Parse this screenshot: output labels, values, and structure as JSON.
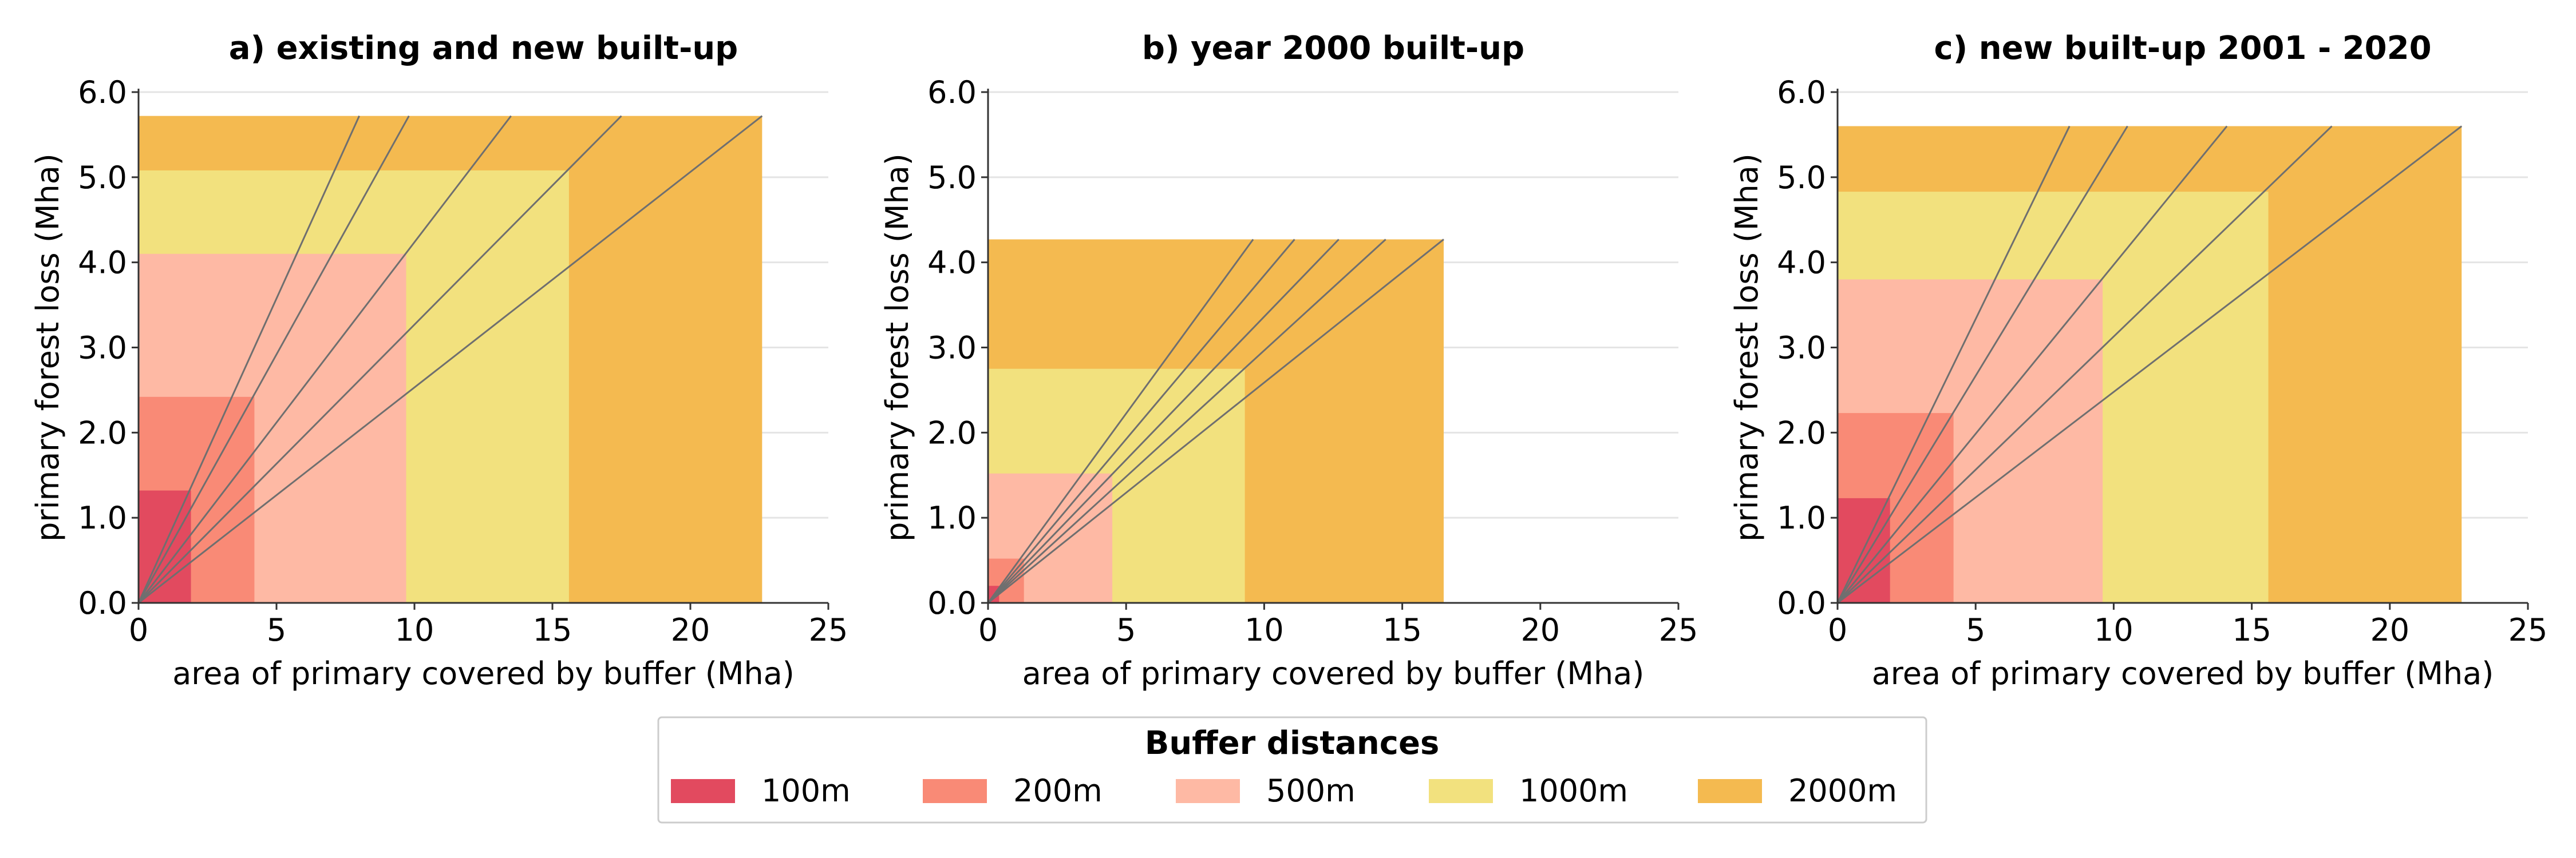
{
  "legend": {
    "title": "Buffer distances",
    "entries": [
      {
        "label": "100m",
        "color": "#e24a5f"
      },
      {
        "label": "200m",
        "color": "#f98a76"
      },
      {
        "label": "500m",
        "color": "#feb9a4"
      },
      {
        "label": "1000m",
        "color": "#f2e17e"
      },
      {
        "label": "2000m",
        "color": "#f4ba50"
      }
    ]
  },
  "chart_data": [
    {
      "type": "area",
      "title": "a) existing and new built-up",
      "xlabel": "area of primary covered by buffer (Mha)",
      "ylabel": "primary forest loss (Mha)",
      "xlim": [
        0,
        25
      ],
      "ylim": [
        0,
        6.0
      ],
      "xticks": [
        0,
        5,
        10,
        15,
        20,
        25
      ],
      "yticks": [
        0.0,
        1.0,
        2.0,
        3.0,
        4.0,
        5.0,
        6.0
      ],
      "ytick_labels": [
        "0.0",
        "1.0",
        "2.0",
        "3.0",
        "4.0",
        "5.0",
        "6.0"
      ],
      "grid": "horizontal",
      "series": [
        {
          "name": "2000m",
          "x": 22.6,
          "y": 5.72
        },
        {
          "name": "1000m",
          "x": 15.6,
          "y": 5.08
        },
        {
          "name": "500m",
          "x": 9.7,
          "y": 4.1
        },
        {
          "name": "200m",
          "x": 4.2,
          "y": 2.42
        },
        {
          "name": "100m",
          "x": 1.9,
          "y": 1.32
        }
      ],
      "rays_end_x": [
        8.0,
        9.8,
        13.5,
        17.5,
        22.6
      ]
    },
    {
      "type": "area",
      "title": "b) year 2000 built-up",
      "xlabel": "area of primary covered by buffer (Mha)",
      "ylabel": "primary forest loss (Mha)",
      "xlim": [
        0,
        25
      ],
      "ylim": [
        0,
        6.0
      ],
      "xticks": [
        0,
        5,
        10,
        15,
        20,
        25
      ],
      "yticks": [
        0.0,
        1.0,
        2.0,
        3.0,
        4.0,
        5.0,
        6.0
      ],
      "ytick_labels": [
        "0.0",
        "1.0",
        "2.0",
        "3.0",
        "4.0",
        "5.0",
        "6.0"
      ],
      "grid": "horizontal",
      "series": [
        {
          "name": "2000m",
          "x": 16.5,
          "y": 4.27
        },
        {
          "name": "1000m",
          "x": 9.3,
          "y": 2.75
        },
        {
          "name": "500m",
          "x": 4.5,
          "y": 1.52
        },
        {
          "name": "200m",
          "x": 1.3,
          "y": 0.52
        },
        {
          "name": "100m",
          "x": 0.4,
          "y": 0.2
        }
      ],
      "rays_end_x": [
        9.6,
        11.1,
        12.7,
        14.4,
        16.5
      ]
    },
    {
      "type": "area",
      "title": "c) new built-up 2001 - 2020",
      "xlabel": "area of primary covered by buffer (Mha)",
      "ylabel": "primary forest loss (Mha)",
      "xlim": [
        0,
        25
      ],
      "ylim": [
        0,
        6.0
      ],
      "xticks": [
        0,
        5,
        10,
        15,
        20,
        25
      ],
      "yticks": [
        0.0,
        1.0,
        2.0,
        3.0,
        4.0,
        5.0,
        6.0
      ],
      "ytick_labels": [
        "0.0",
        "1.0",
        "2.0",
        "3.0",
        "4.0",
        "5.0",
        "6.0"
      ],
      "grid": "horizontal",
      "series": [
        {
          "name": "2000m",
          "x": 22.6,
          "y": 5.6
        },
        {
          "name": "1000m",
          "x": 15.6,
          "y": 4.83
        },
        {
          "name": "500m",
          "x": 9.6,
          "y": 3.8
        },
        {
          "name": "200m",
          "x": 4.2,
          "y": 2.23
        },
        {
          "name": "100m",
          "x": 1.9,
          "y": 1.23
        }
      ],
      "rays_end_x": [
        8.4,
        10.5,
        14.1,
        17.9,
        22.6
      ]
    }
  ]
}
